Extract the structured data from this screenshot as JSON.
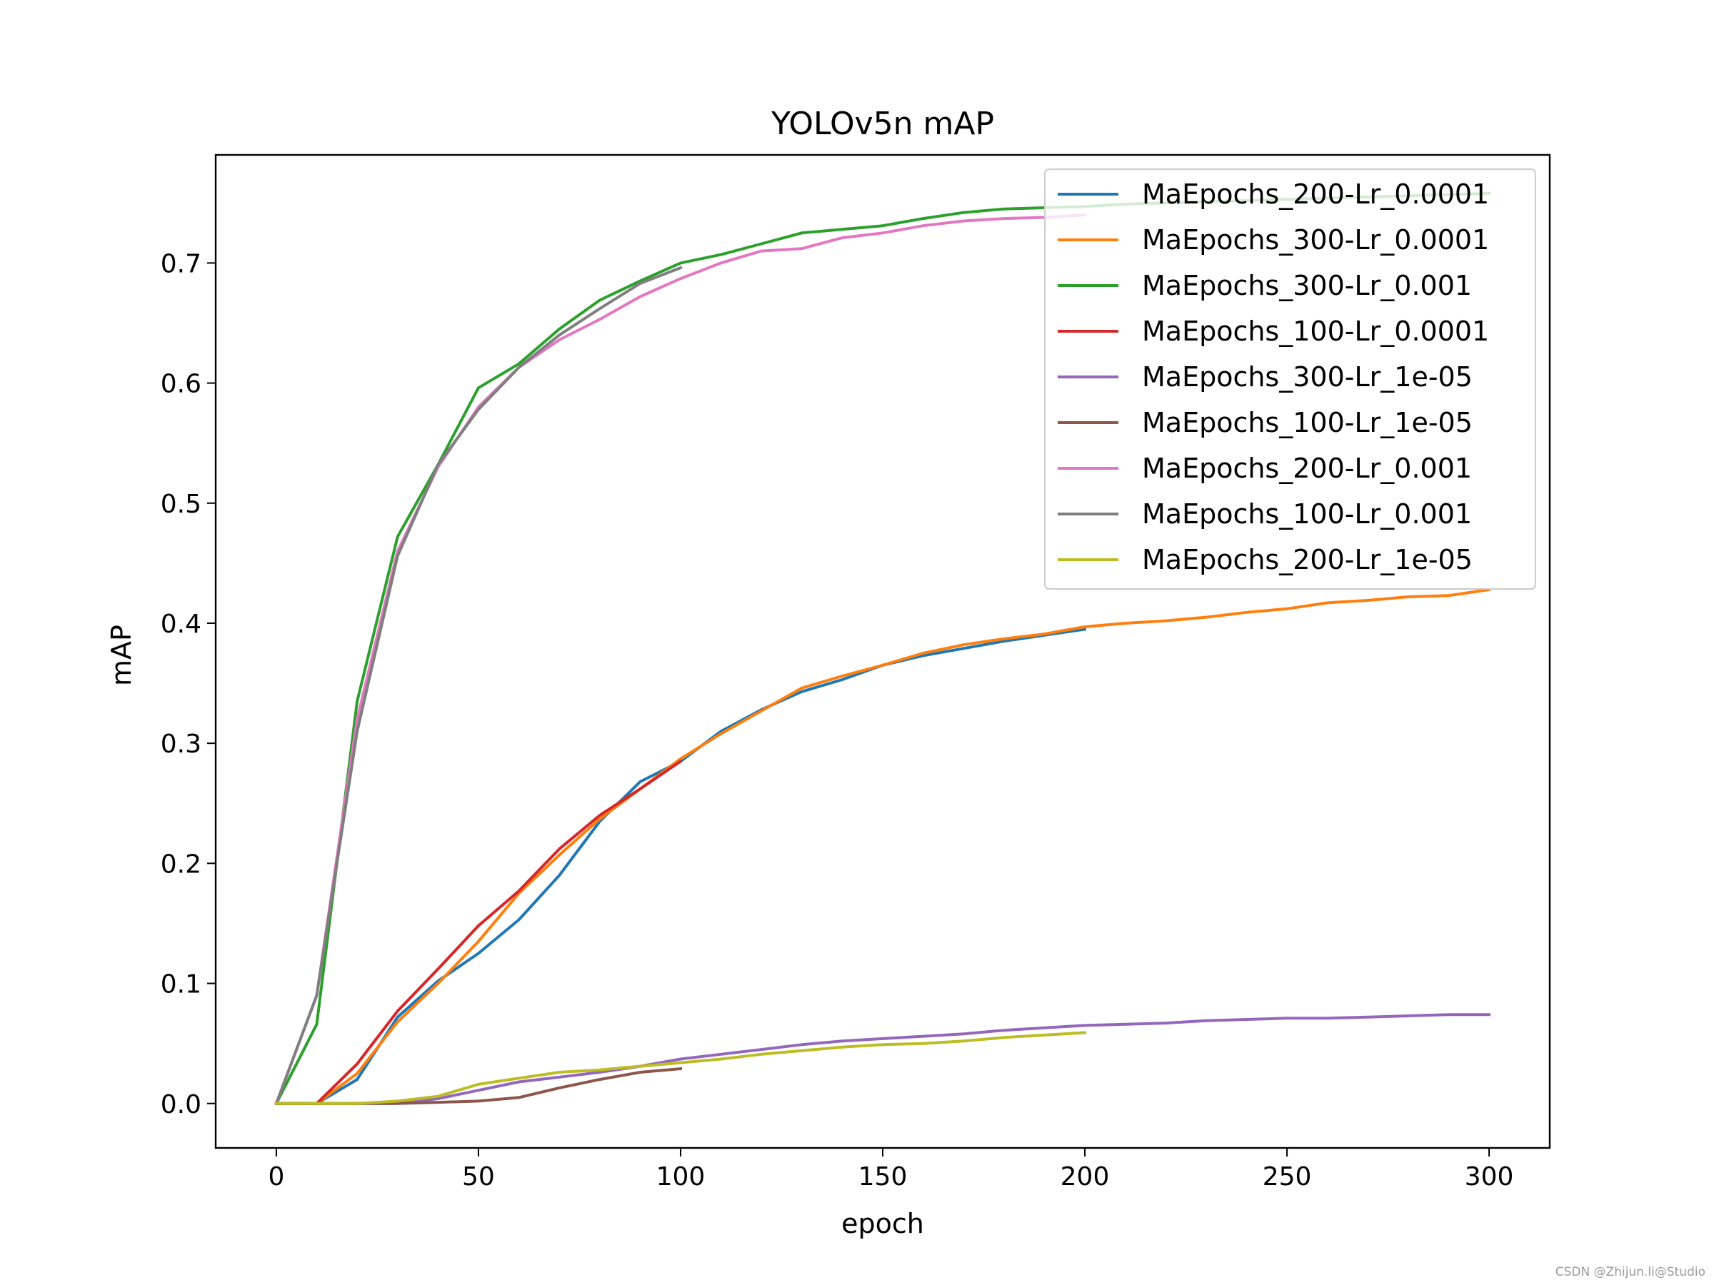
{
  "chart_data": {
    "type": "line",
    "title": "YOLOv5n mAP",
    "xlabel": "epoch",
    "ylabel": "mAP",
    "xlim": [
      -15,
      315
    ],
    "ylim": [
      -0.037,
      0.79
    ],
    "xticks": [
      0,
      50,
      100,
      150,
      200,
      250,
      300
    ],
    "xtick_labels": [
      "0",
      "50",
      "100",
      "150",
      "200",
      "250",
      "300"
    ],
    "yticks": [
      0.0,
      0.1,
      0.2,
      0.3,
      0.4,
      0.5,
      0.6,
      0.7
    ],
    "ytick_labels": [
      "0.0",
      "0.1",
      "0.2",
      "0.3",
      "0.4",
      "0.5",
      "0.6",
      "0.7"
    ],
    "grid": false,
    "legend_position": "top-right",
    "series": [
      {
        "name": "MaEpochs_200-Lr_0.0001",
        "color": "#1f77b4",
        "x": [
          0,
          10,
          20,
          30,
          40,
          50,
          60,
          70,
          80,
          90,
          100,
          110,
          120,
          130,
          140,
          150,
          160,
          170,
          180,
          190,
          200
        ],
        "y": [
          0.0,
          0.0,
          0.02,
          0.072,
          0.102,
          0.125,
          0.153,
          0.19,
          0.235,
          0.268,
          0.285,
          0.31,
          0.328,
          0.343,
          0.353,
          0.365,
          0.373,
          0.379,
          0.385,
          0.39,
          0.395
        ]
      },
      {
        "name": "MaEpochs_300-Lr_0.0001",
        "color": "#ff7f0e",
        "x": [
          0,
          10,
          20,
          30,
          40,
          50,
          60,
          70,
          80,
          90,
          100,
          110,
          120,
          130,
          140,
          150,
          160,
          170,
          180,
          190,
          200,
          210,
          220,
          230,
          240,
          250,
          260,
          270,
          280,
          290,
          300
        ],
        "y": [
          0.0,
          0.0,
          0.025,
          0.068,
          0.1,
          0.135,
          0.175,
          0.207,
          0.237,
          0.262,
          0.287,
          0.308,
          0.327,
          0.346,
          0.356,
          0.365,
          0.375,
          0.382,
          0.387,
          0.391,
          0.397,
          0.4,
          0.402,
          0.405,
          0.409,
          0.412,
          0.417,
          0.419,
          0.422,
          0.423,
          0.428
        ]
      },
      {
        "name": "MaEpochs_300-Lr_0.001",
        "color": "#2ca02c",
        "x": [
          0,
          10,
          20,
          30,
          40,
          50,
          60,
          70,
          80,
          90,
          100,
          110,
          120,
          130,
          140,
          150,
          160,
          170,
          180,
          190,
          200,
          210,
          220,
          230,
          240,
          250,
          260,
          270,
          280,
          290,
          300
        ],
        "y": [
          0.0,
          0.066,
          0.335,
          0.472,
          0.532,
          0.596,
          0.616,
          0.645,
          0.669,
          0.685,
          0.7,
          0.707,
          0.716,
          0.725,
          0.728,
          0.731,
          0.737,
          0.742,
          0.745,
          0.746,
          0.747,
          0.749,
          0.75,
          0.751,
          0.752,
          0.753,
          0.754,
          0.755,
          0.756,
          0.757,
          0.758
        ]
      },
      {
        "name": "MaEpochs_100-Lr_0.0001",
        "color": "#d62728",
        "x": [
          0,
          10,
          20,
          30,
          40,
          50,
          60,
          70,
          80,
          90,
          100
        ],
        "y": [
          0.0,
          0.0,
          0.033,
          0.077,
          0.112,
          0.148,
          0.177,
          0.212,
          0.24,
          0.262,
          0.285
        ]
      },
      {
        "name": "MaEpochs_300-Lr_1e-05",
        "color": "#9467bd",
        "x": [
          0,
          10,
          20,
          30,
          40,
          50,
          60,
          70,
          80,
          90,
          100,
          110,
          120,
          130,
          140,
          150,
          160,
          170,
          180,
          190,
          200,
          210,
          220,
          230,
          240,
          250,
          260,
          270,
          280,
          290,
          300
        ],
        "y": [
          0.0,
          0.0,
          0.0,
          0.0,
          0.004,
          0.011,
          0.018,
          0.022,
          0.026,
          0.031,
          0.037,
          0.041,
          0.045,
          0.049,
          0.052,
          0.054,
          0.056,
          0.058,
          0.061,
          0.063,
          0.065,
          0.066,
          0.067,
          0.069,
          0.07,
          0.071,
          0.071,
          0.072,
          0.073,
          0.074,
          0.074
        ]
      },
      {
        "name": "MaEpochs_100-Lr_1e-05",
        "color": "#8c564b",
        "x": [
          0,
          10,
          20,
          30,
          40,
          50,
          60,
          70,
          80,
          90,
          100
        ],
        "y": [
          0.0,
          0.0,
          0.0,
          0.0,
          0.001,
          0.002,
          0.005,
          0.013,
          0.02,
          0.026,
          0.029
        ]
      },
      {
        "name": "MaEpochs_200-Lr_0.001",
        "color": "#e377c2",
        "x": [
          0,
          10,
          20,
          30,
          40,
          50,
          60,
          70,
          80,
          90,
          100,
          110,
          120,
          130,
          140,
          150,
          160,
          170,
          180,
          190,
          200
        ],
        "y": [
          0.0,
          0.09,
          0.32,
          0.46,
          0.53,
          0.58,
          0.613,
          0.636,
          0.653,
          0.672,
          0.687,
          0.7,
          0.71,
          0.712,
          0.721,
          0.725,
          0.731,
          0.735,
          0.737,
          0.738,
          0.74
        ]
      },
      {
        "name": "MaEpochs_100-Lr_0.001",
        "color": "#7f7f7f",
        "x": [
          0,
          10,
          20,
          30,
          40,
          50,
          60,
          70,
          80,
          90,
          100
        ],
        "y": [
          0.0,
          0.09,
          0.31,
          0.456,
          0.532,
          0.578,
          0.613,
          0.64,
          0.662,
          0.683,
          0.696
        ]
      },
      {
        "name": "MaEpochs_200-Lr_1e-05",
        "color": "#bcbd22",
        "x": [
          0,
          10,
          20,
          30,
          40,
          50,
          60,
          70,
          80,
          90,
          100,
          110,
          120,
          130,
          140,
          150,
          160,
          170,
          180,
          190,
          200
        ],
        "y": [
          0.0,
          0.0,
          0.0,
          0.002,
          0.006,
          0.016,
          0.021,
          0.026,
          0.028,
          0.031,
          0.034,
          0.037,
          0.041,
          0.044,
          0.047,
          0.049,
          0.05,
          0.052,
          0.055,
          0.057,
          0.059
        ]
      }
    ]
  },
  "watermark": "CSDN @Zhijun.li@Studio"
}
